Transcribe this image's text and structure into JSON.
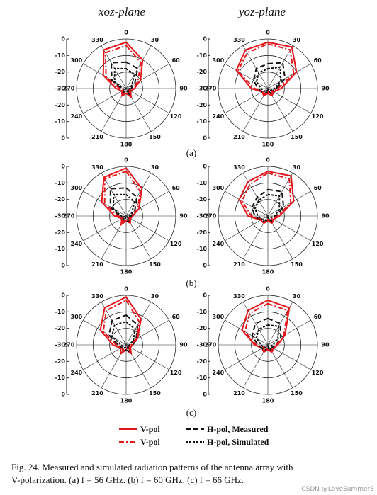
{
  "column_titles": [
    "xoz-plane",
    "yoz-plane"
  ],
  "panel_labels": [
    "(a)",
    "(b)",
    "(c)"
  ],
  "legend": [
    "V-pol",
    "H-pol, Measured",
    "V-pol",
    "H-pol, Simulated"
  ],
  "caption": [
    "Fig. 24. Measured and simulated radiation patterns of the antenna array with",
    "V-polarization. (a) f = 56 GHz. (b) f = 60 GHz. (c) f = 66 GHz."
  ],
  "watermark": "CSDN @LoveSummer3",
  "chart_data": [
    {
      "type": "polar",
      "theta": [
        0,
        30,
        60,
        90,
        120,
        150,
        180,
        210,
        240,
        270,
        300,
        330
      ],
      "rlim": [
        -30,
        0
      ],
      "rticks": [
        0,
        -10,
        -20,
        -30
      ],
      "thetaticks": [
        0,
        30,
        60,
        90,
        120,
        150,
        180,
        210,
        240,
        270,
        300,
        330
      ],
      "series": [
        {
          "color": "#e3161c",
          "dash": "solid",
          "values": [
            -2,
            -10,
            -20,
            -25,
            -27,
            -24,
            -27,
            -25,
            -27,
            -24,
            -14,
            -3
          ]
        },
        {
          "color": "#111111",
          "dash": "dash",
          "values": [
            -14,
            -16,
            -24,
            -27,
            -28,
            -26,
            -28,
            -27,
            -28,
            -27,
            -20,
            -12
          ]
        },
        {
          "color": "#e3161c",
          "dash": "dashdot",
          "values": [
            -4,
            -12,
            -22,
            -26,
            -28,
            -26,
            -28,
            -26,
            -28,
            -26,
            -16,
            -5
          ]
        },
        {
          "color": "#111111",
          "dash": "dot",
          "values": [
            -18,
            -20,
            -26,
            -28,
            -29,
            -27,
            -29,
            -28,
            -29,
            -28,
            -22,
            -16
          ]
        }
      ]
    },
    {
      "type": "polar",
      "theta": [
        0,
        30,
        60,
        90,
        120,
        150,
        180,
        210,
        240,
        270,
        300,
        330
      ],
      "rlim": [
        -30,
        0
      ],
      "rticks": [
        0,
        -10,
        -20,
        -30
      ],
      "thetaticks": [
        0,
        30,
        60,
        90,
        120,
        150,
        180,
        210,
        240,
        270,
        300,
        330
      ],
      "series": [
        {
          "color": "#e3161c",
          "dash": "solid",
          "values": [
            -2,
            -1,
            -10,
            -22,
            -26,
            -25,
            -27,
            -25,
            -26,
            -20,
            -8,
            -3
          ]
        },
        {
          "color": "#111111",
          "dash": "dash",
          "values": [
            -15,
            -12,
            -18,
            -25,
            -27,
            -26,
            -28,
            -27,
            -26,
            -24,
            -20,
            -16
          ]
        },
        {
          "color": "#e3161c",
          "dash": "dashdot",
          "values": [
            -3,
            -3,
            -12,
            -24,
            -27,
            -26,
            -28,
            -26,
            -27,
            -22,
            -9,
            -5
          ]
        },
        {
          "color": "#111111",
          "dash": "dot",
          "values": [
            -18,
            -15,
            -21,
            -26,
            -28,
            -27,
            -29,
            -28,
            -27,
            -26,
            -22,
            -19
          ]
        }
      ]
    },
    {
      "type": "polar",
      "theta": [
        0,
        30,
        60,
        90,
        120,
        150,
        180,
        210,
        240,
        270,
        300,
        330
      ],
      "rlim": [
        -30,
        0
      ],
      "rticks": [
        0,
        -10,
        -20,
        -30
      ],
      "thetaticks": [
        0,
        30,
        60,
        90,
        120,
        150,
        180,
        210,
        240,
        270,
        300,
        330
      ],
      "series": [
        {
          "color": "#e3161c",
          "dash": "solid",
          "values": [
            -1,
            -11,
            -21,
            -26,
            -27,
            -25,
            -27,
            -24,
            -27,
            -23,
            -13,
            -3
          ]
        },
        {
          "color": "#111111",
          "dash": "dash",
          "values": [
            -13,
            -17,
            -24,
            -27,
            -28,
            -26,
            -27,
            -27,
            -28,
            -26,
            -19,
            -11
          ]
        },
        {
          "color": "#e3161c",
          "dash": "dashdot",
          "values": [
            -3,
            -13,
            -22,
            -27,
            -28,
            -26,
            -28,
            -26,
            -28,
            -25,
            -15,
            -4
          ]
        },
        {
          "color": "#111111",
          "dash": "dot",
          "values": [
            -17,
            -20,
            -26,
            -28,
            -29,
            -27,
            -29,
            -28,
            -29,
            -27,
            -21,
            -15
          ]
        }
      ]
    },
    {
      "type": "polar",
      "theta": [
        0,
        30,
        60,
        90,
        120,
        150,
        180,
        210,
        240,
        270,
        300,
        330
      ],
      "rlim": [
        -30,
        0
      ],
      "rticks": [
        0,
        -10,
        -20,
        -30
      ],
      "thetaticks": [
        0,
        30,
        60,
        90,
        120,
        150,
        180,
        210,
        240,
        270,
        300,
        330
      ],
      "series": [
        {
          "color": "#e3161c",
          "dash": "solid",
          "values": [
            -3,
            -2,
            -12,
            -23,
            -26,
            -25,
            -27,
            -25,
            -25,
            -18,
            -10,
            -6
          ]
        },
        {
          "color": "#111111",
          "dash": "dash",
          "values": [
            -14,
            -13,
            -19,
            -25,
            -27,
            -26,
            -28,
            -26,
            -25,
            -22,
            -19,
            -17
          ]
        },
        {
          "color": "#e3161c",
          "dash": "dashdot",
          "values": [
            -4,
            -4,
            -14,
            -24,
            -27,
            -26,
            -28,
            -26,
            -26,
            -20,
            -12,
            -8
          ]
        },
        {
          "color": "#111111",
          "dash": "dot",
          "values": [
            -17,
            -16,
            -22,
            -26,
            -28,
            -27,
            -29,
            -27,
            -26,
            -24,
            -21,
            -19
          ]
        }
      ]
    },
    {
      "type": "polar",
      "theta": [
        0,
        30,
        60,
        90,
        120,
        150,
        180,
        210,
        240,
        270,
        300,
        330
      ],
      "rlim": [
        -30,
        0
      ],
      "rticks": [
        0,
        -10,
        -20,
        -30
      ],
      "thetaticks": [
        0,
        30,
        60,
        90,
        120,
        150,
        180,
        210,
        240,
        270,
        300,
        330
      ],
      "series": [
        {
          "color": "#e3161c",
          "dash": "solid",
          "values": [
            -1,
            -12,
            -22,
            -26,
            -27,
            -24,
            -27,
            -24,
            -26,
            -22,
            -12,
            -4
          ]
        },
        {
          "color": "#111111",
          "dash": "dash",
          "values": [
            -12,
            -16,
            -23,
            -26,
            -28,
            -25,
            -27,
            -26,
            -27,
            -25,
            -18,
            -13
          ]
        },
        {
          "color": "#e3161c",
          "dash": "dashdot",
          "values": [
            -3,
            -14,
            -23,
            -27,
            -28,
            -26,
            -28,
            -26,
            -27,
            -24,
            -14,
            -6
          ]
        },
        {
          "color": "#111111",
          "dash": "dot",
          "values": [
            -16,
            -19,
            -25,
            -28,
            -29,
            -27,
            -29,
            -28,
            -28,
            -27,
            -20,
            -16
          ]
        }
      ]
    },
    {
      "type": "polar",
      "theta": [
        0,
        30,
        60,
        90,
        120,
        150,
        180,
        210,
        240,
        270,
        300,
        330
      ],
      "rlim": [
        -30,
        0
      ],
      "rticks": [
        0,
        -10,
        -20,
        -30
      ],
      "thetaticks": [
        0,
        30,
        60,
        90,
        120,
        150,
        180,
        210,
        240,
        270,
        300,
        330
      ],
      "series": [
        {
          "color": "#e3161c",
          "dash": "solid",
          "values": [
            -3,
            -4,
            -18,
            -24,
            -26,
            -25,
            -27,
            -25,
            -26,
            -22,
            -12,
            -6
          ]
        },
        {
          "color": "#111111",
          "dash": "dash",
          "values": [
            -14,
            -15,
            -21,
            -25,
            -27,
            -26,
            -28,
            -26,
            -26,
            -24,
            -19,
            -15
          ]
        },
        {
          "color": "#e3161c",
          "dash": "dashdot",
          "values": [
            -5,
            -6,
            -19,
            -25,
            -27,
            -26,
            -28,
            -26,
            -27,
            -23,
            -14,
            -8
          ]
        },
        {
          "color": "#111111",
          "dash": "dot",
          "values": [
            -18,
            -17,
            -23,
            -27,
            -28,
            -27,
            -29,
            -28,
            -27,
            -26,
            -22,
            -19
          ]
        }
      ]
    }
  ]
}
